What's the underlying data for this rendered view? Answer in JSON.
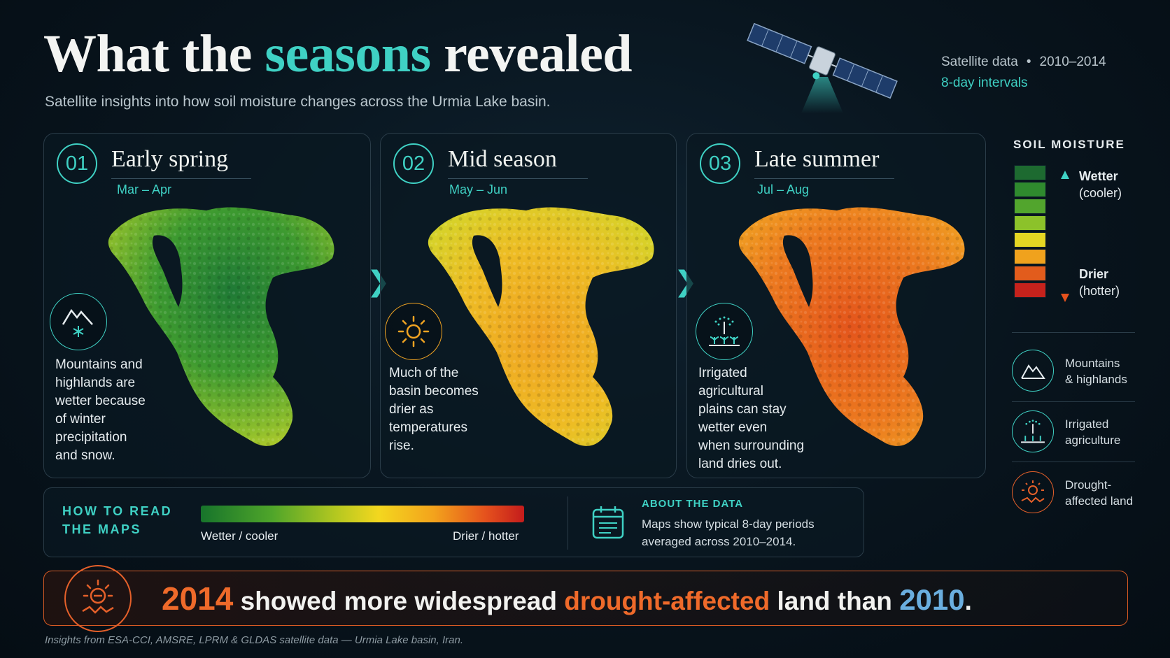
{
  "header": {
    "title_pre": "What the ",
    "title_accent": "seasons",
    "title_post": " revealed",
    "subtitle": "Satellite insights into how soil moisture changes across the Urmia Lake basin.",
    "meta_source": "Satellite data",
    "meta_years": "2010–2014",
    "meta_interval": "8-day intervals"
  },
  "panels": [
    {
      "number": "01",
      "title": "Early spring",
      "dates": "Mar – Apr",
      "icon": "mountain-snow-icon",
      "text": [
        "Mountains and",
        "highlands are",
        "wetter because",
        "of winter",
        "precipitation",
        "and snow."
      ]
    },
    {
      "number": "02",
      "title": "Mid season",
      "dates": "May – Jun",
      "icon": "sun-icon",
      "text": [
        "Much of the",
        "basin becomes",
        "drier as",
        "temperatures",
        "rise."
      ]
    },
    {
      "number": "03",
      "title": "Late summer",
      "dates": "Jul – Aug",
      "icon": "sprinkler-icon",
      "text": [
        "Irrigated",
        "agricultural",
        "plains can stay",
        "wetter even",
        "when surrounding",
        "land dries out."
      ]
    }
  ],
  "legend": {
    "title": "SOIL MOISTURE",
    "wetter": "Wetter",
    "wetter_sub": "(cooler)",
    "drier": "Drier",
    "drier_sub": "(hotter)",
    "swatches": [
      "#1d6a30",
      "#2f8a2e",
      "#52a52d",
      "#8cc22a",
      "#e4d623",
      "#f0a21d",
      "#e25c1c",
      "#c6221c"
    ],
    "items": [
      {
        "icon": "mountain-icon",
        "label_1": "Mountains",
        "label_2": "& highlands"
      },
      {
        "icon": "sprinkler-icon",
        "label_1": "Irrigated",
        "label_2": "agriculture"
      },
      {
        "icon": "drought-icon",
        "label_1": "Drought-",
        "label_2": "affected land"
      }
    ]
  },
  "how_to_read": {
    "heading_1": "HOW TO READ",
    "heading_2": "THE MAPS",
    "left": "Wetter / cooler",
    "right": "Drier / hotter"
  },
  "about": {
    "heading": "ABOUT THE DATA",
    "line_1": "Maps show typical 8-day periods",
    "line_2": "averaged across 2010–2014."
  },
  "conclusion": {
    "year_1": "2014",
    "part_1": " showed more widespread ",
    "highlight": "drought-affected",
    "part_2": " land than ",
    "year_2": "2010",
    "end": "."
  },
  "footnote": "Insights from ESA-CCI, AMSRE, LPRM & GLDAS satellite data — Urmia Lake basin, Iran.",
  "colors": {
    "accent": "#3fd1c4",
    "warning": "#ef6a2a",
    "blue": "#6aaedf"
  }
}
